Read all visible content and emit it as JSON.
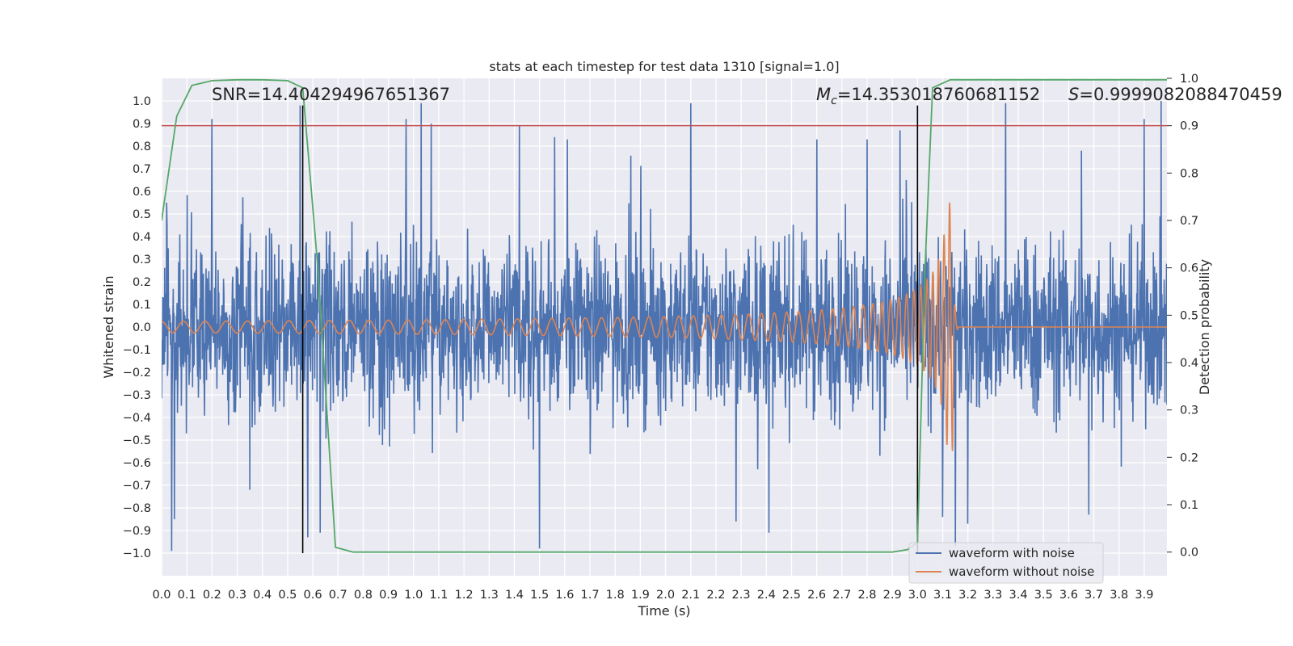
{
  "chart_data": {
    "type": "line",
    "title": "stats at each timestep for test data 1310 [signal=1.0]",
    "xlabel": "Time (s)",
    "ylabel_left": "Whitened strain",
    "ylabel_right": "Detection probability",
    "xlim": [
      0.0,
      3.99
    ],
    "ylim_left": [
      -1.1,
      1.1
    ],
    "ylim_right": [
      -0.05,
      1.0
    ],
    "x_ticks": [
      "0.0",
      "0.1",
      "0.2",
      "0.3",
      "0.4",
      "0.5",
      "0.6",
      "0.7",
      "0.8",
      "0.9",
      "1.0",
      "1.1",
      "1.2",
      "1.3",
      "1.4",
      "1.5",
      "1.6",
      "1.7",
      "1.8",
      "1.9",
      "2.0",
      "2.1",
      "2.2",
      "2.3",
      "2.4",
      "2.5",
      "2.6",
      "2.7",
      "2.8",
      "2.9",
      "3.0",
      "3.1",
      "3.2",
      "3.3",
      "3.4",
      "3.5",
      "3.6",
      "3.7",
      "3.8",
      "3.9"
    ],
    "y_ticks_left": [
      "1.0",
      "0.9",
      "0.8",
      "0.7",
      "0.6",
      "0.5",
      "0.4",
      "0.3",
      "0.2",
      "0.1",
      "0.0",
      "−0.1",
      "−0.2",
      "−0.3",
      "−0.4",
      "−0.5",
      "−0.6",
      "−0.7",
      "−0.8",
      "−0.9",
      "−1.0"
    ],
    "y_ticks_right": [
      "1.0",
      "0.9",
      "0.8",
      "0.7",
      "0.6",
      "0.5",
      "0.4",
      "0.3",
      "0.2",
      "0.1",
      "0.0"
    ],
    "annotations": {
      "snr": "SNR=14.404294967651367",
      "mc_symbol": "M",
      "mc_sub": "c",
      "mc_value": "=14.353018760681152",
      "s_symbol": "S",
      "s_value": "=0.9999082088470459"
    },
    "threshold_right": 0.9,
    "vertical_lines_x": [
      0.56,
      3.0
    ],
    "series": [
      {
        "name": "waveform with noise",
        "color": "#4c72b0",
        "kind": "noise",
        "amplitude_envelope": 0.45,
        "peak_samples": [
          [
            0.02,
            0.55
          ],
          [
            0.05,
            -0.85
          ],
          [
            0.04,
            -0.99
          ],
          [
            0.2,
            0.92
          ],
          [
            0.35,
            -0.72
          ],
          [
            0.55,
            0.98
          ],
          [
            0.58,
            -0.93
          ],
          [
            0.63,
            -0.91
          ],
          [
            0.97,
            0.92
          ],
          [
            1.03,
            0.99
          ],
          [
            1.07,
            0.9
          ],
          [
            1.42,
            0.89
          ],
          [
            1.5,
            -0.98
          ],
          [
            1.56,
            0.84
          ],
          [
            1.61,
            0.83
          ],
          [
            2.1,
            0.99
          ],
          [
            2.28,
            -0.86
          ],
          [
            2.41,
            -0.91
          ],
          [
            2.6,
            0.83
          ],
          [
            2.8,
            0.83
          ],
          [
            2.93,
            0.87
          ],
          [
            3.1,
            -0.84
          ],
          [
            3.15,
            -0.97
          ],
          [
            3.2,
            -0.87
          ],
          [
            3.35,
            0.99
          ],
          [
            3.65,
            0.78
          ],
          [
            3.68,
            -0.83
          ],
          [
            3.9,
            0.92
          ]
        ]
      },
      {
        "name": "waveform without noise",
        "color": "#dd8452",
        "kind": "chirp",
        "merger_time": 3.14,
        "ringdown_end": 3.16,
        "start_amplitude": 0.025,
        "peak_amplitude": 0.55,
        "start_freq": 11.5,
        "merger_freq": 45
      },
      {
        "name": "detection probability",
        "color": "#55a868",
        "axis": "right",
        "x": [
          0.0,
          0.06,
          0.12,
          0.2,
          0.3,
          0.4,
          0.5,
          0.56,
          0.62,
          0.69,
          0.76,
          0.85,
          1.0,
          2.0,
          2.9,
          2.96,
          3.0,
          3.03,
          3.06,
          3.13,
          3.2,
          3.4,
          3.99
        ],
        "y": [
          0.7,
          0.92,
          0.985,
          0.995,
          0.997,
          0.997,
          0.995,
          0.98,
          0.6,
          0.01,
          0.0,
          0.0,
          0.0,
          0.0,
          0.0,
          0.005,
          0.02,
          0.6,
          0.98,
          0.997,
          0.997,
          0.997,
          0.997
        ]
      }
    ],
    "legend": {
      "position": "lower-right",
      "entries": [
        "waveform with noise",
        "waveform without noise"
      ]
    }
  },
  "colors": {
    "axes_bg": "#eaeaf2",
    "grid": "#ffffff",
    "threshold": "#c44e52",
    "vline": "#000000",
    "noise": "#4c72b0",
    "chirp": "#dd8452",
    "prob": "#55a868"
  }
}
